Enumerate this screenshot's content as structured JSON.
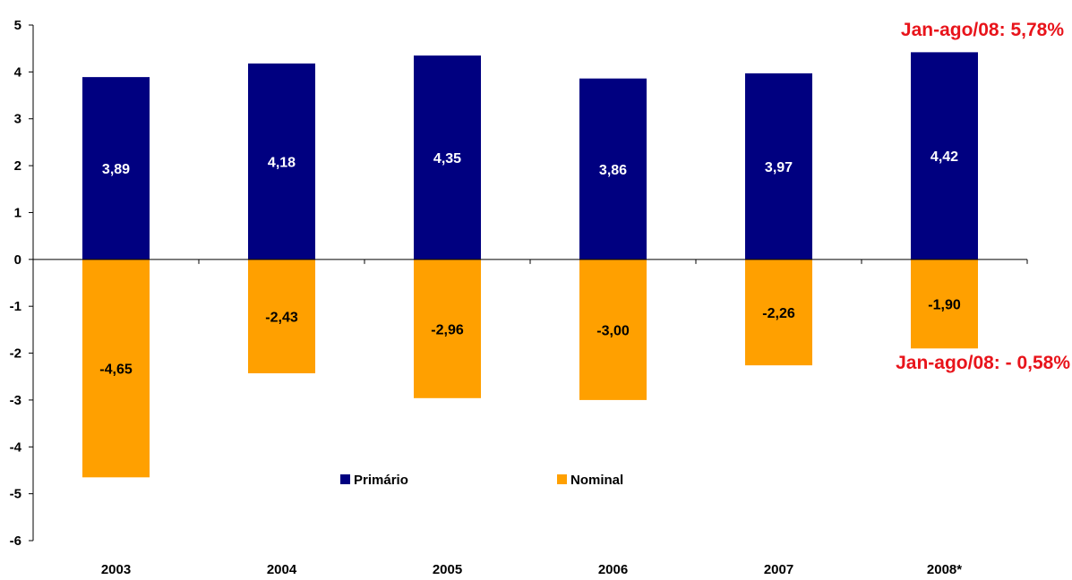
{
  "chart_data": {
    "type": "bar",
    "stacked": false,
    "categories": [
      "2003",
      "2004",
      "2005",
      "2006",
      "2007",
      "2008*"
    ],
    "series": [
      {
        "name": "Primário",
        "color": "#000080",
        "label_color": "#ffffff",
        "values": [
          3.89,
          4.18,
          4.35,
          3.86,
          3.97,
          4.42
        ],
        "labels": [
          "3,89",
          "4,18",
          "4,35",
          "3,86",
          "3,97",
          "4,42"
        ]
      },
      {
        "name": "Nominal",
        "color": "#FFA000",
        "label_color": "#000000",
        "values": [
          -4.65,
          -2.43,
          -2.96,
          -3.0,
          -2.26,
          -1.9
        ],
        "labels": [
          "-4,65",
          "-2,43",
          "-2,96",
          "-3,00",
          "-2,26",
          "-1,90"
        ]
      }
    ],
    "ylim": [
      -6,
      5
    ],
    "yticks": [
      "-6",
      "-5",
      "-4",
      "-3",
      "-2",
      "-1",
      "0",
      "1",
      "2",
      "3",
      "4",
      "5"
    ],
    "grid": false,
    "legend": "bottom-center",
    "annotations": [
      {
        "text": "Jan-ago/08: 5,78%",
        "color": "#e8141b"
      },
      {
        "text": "Jan-ago/08: - 0,58%",
        "color": "#e8141b"
      }
    ]
  }
}
